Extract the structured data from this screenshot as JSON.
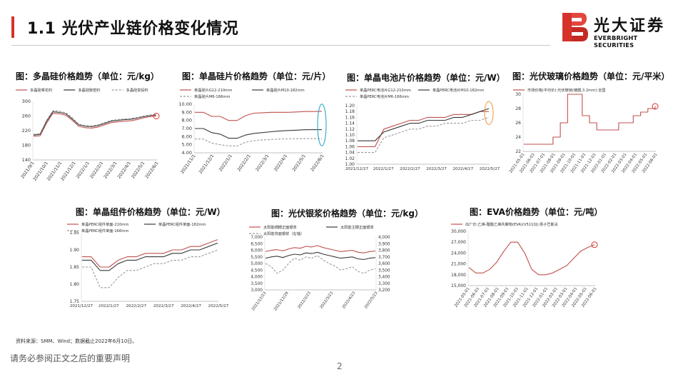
{
  "header": {
    "title": "1.1 光伏产业链价格变化情况",
    "logo_cn": "光大证券",
    "logo_en": "EVERBRIGHT SECURITIES",
    "accent_color": "#d6322b"
  },
  "footer": {
    "source": "资料来源：SMM、Wind；数据截止2022年6月10日。",
    "disclaimer": "请务必参阅正文之后的重要声明",
    "page": "2"
  },
  "chart_data": [
    {
      "id": "polysilicon",
      "type": "line",
      "title": "图：多晶硅价格趋势（单位：元/kg）",
      "legend": [
        "多晶硅菜花料",
        "多晶硅致密料",
        "多晶硅复投料"
      ],
      "ylim": [
        140,
        300
      ],
      "yticks": [
        "140",
        "180",
        "220",
        "260",
        "300"
      ],
      "xticks": [
        "2021/9/1",
        "2021/10/1",
        "2021/11/1",
        "2021/12/1",
        "2022/1/1",
        "2022/2/1",
        "2022/3/1",
        "2022/4/1",
        "2022/5/1",
        "2022/6/1"
      ],
      "highlight": "circle-end",
      "series": [
        {
          "name": "多晶硅菜花料",
          "color": "#c0504d",
          "dash": "",
          "values": [
            205,
            206,
            240,
            268,
            266,
            262,
            248,
            232,
            228,
            227,
            230,
            236,
            242,
            244,
            246,
            247,
            250,
            255,
            258,
            260
          ]
        },
        {
          "name": "多晶硅致密料",
          "color": "#3a3a3a",
          "dash": "",
          "values": [
            208,
            210,
            245,
            272,
            270,
            266,
            252,
            236,
            232,
            231,
            234,
            240,
            246,
            248,
            250,
            251,
            254,
            258,
            261,
            263
          ]
        },
        {
          "name": "多晶硅复投料",
          "color": "#9a9a9a",
          "dash": "3,2",
          "values": [
            210,
            212,
            248,
            275,
            273,
            269,
            255,
            238,
            234,
            233,
            236,
            242,
            248,
            250,
            252,
            253,
            256,
            260,
            263,
            265
          ]
        }
      ]
    },
    {
      "id": "wafer",
      "type": "line",
      "title": "图：单晶硅片价格趋势（单位：元/片）",
      "legend": [
        "单晶硅片G12-210mm",
        "单晶硅片M10-182mm",
        "单晶硅片M6-166mm"
      ],
      "ylim": [
        4.0,
        10.0
      ],
      "yticks": [
        "4.00",
        "5.00",
        "6.00",
        "7.00",
        "8.00",
        "9.00",
        "10.00"
      ],
      "xticks": [
        "2021/11/1",
        "2021/12/1",
        "2022/1/1",
        "2022/2/1",
        "2022/3/1",
        "2022/4/1",
        "2022/5/1",
        "2022/6/1"
      ],
      "highlight": "ellipse-end",
      "series": [
        {
          "name": "单晶硅片G12-210mm",
          "color": "#c0504d",
          "dash": "",
          "values": [
            9.0,
            9.0,
            8.5,
            8.5,
            8.0,
            8.0,
            8.6,
            8.9,
            8.95,
            9.0,
            9.0,
            9.0,
            9.05,
            9.1,
            9.1,
            9.13
          ]
        },
        {
          "name": "单晶硅片M10-182mm",
          "color": "#3a3a3a",
          "dash": "",
          "values": [
            7.0,
            7.0,
            6.5,
            6.3,
            5.8,
            5.8,
            6.2,
            6.4,
            6.5,
            6.6,
            6.7,
            6.75,
            6.8,
            6.85,
            6.86,
            6.86
          ]
        },
        {
          "name": "单晶硅片M6-166mm",
          "color": "#9a9a9a",
          "dash": "3,2",
          "values": [
            5.7,
            5.7,
            5.2,
            5.0,
            4.85,
            4.85,
            5.3,
            5.5,
            5.6,
            5.65,
            5.7,
            5.72,
            5.75,
            5.75,
            5.75,
            5.75
          ]
        }
      ]
    },
    {
      "id": "cell",
      "type": "line",
      "title": "图：单晶电池片价格趋势（单位：元/W）",
      "legend": [
        "单晶PERC电池片G12-210mm",
        "单晶PERC电池片M10-182mm",
        "单晶PERC电池片M6-166mm"
      ],
      "ylim": [
        1.0,
        1.2
      ],
      "yticks": [
        "1.00",
        "1.02",
        "1.04",
        "1.06",
        "1.08",
        "1.10",
        "1.12",
        "1.14",
        "1.16",
        "1.18",
        "1.20"
      ],
      "xticks": [
        "2021/12/27",
        "2022/1/27",
        "2022/2/27",
        "2022/3/27",
        "2022/4/27",
        "2022/5/27"
      ],
      "highlight": "ellipse-end",
      "series": [
        {
          "name": "单晶PERC电池片G12-210mm",
          "color": "#c0504d",
          "dash": "",
          "values": [
            1.06,
            1.06,
            1.06,
            1.12,
            1.13,
            1.14,
            1.15,
            1.15,
            1.16,
            1.16,
            1.16,
            1.17,
            1.17,
            1.17,
            1.18,
            1.18
          ]
        },
        {
          "name": "单晶PERC电池片M10-182mm",
          "color": "#3a3a3a",
          "dash": "",
          "values": [
            1.08,
            1.08,
            1.08,
            1.11,
            1.12,
            1.13,
            1.14,
            1.14,
            1.15,
            1.15,
            1.15,
            1.16,
            1.16,
            1.17,
            1.18,
            1.19
          ]
        },
        {
          "name": "单晶PERC电池片M6-166mm",
          "color": "#9a9a9a",
          "dash": "3,2",
          "values": [
            1.04,
            1.04,
            1.04,
            1.09,
            1.1,
            1.11,
            1.12,
            1.12,
            1.13,
            1.13,
            1.14,
            1.14,
            1.14,
            1.15,
            1.15,
            1.16
          ]
        }
      ]
    },
    {
      "id": "glass",
      "type": "line",
      "title": "图：光伏玻璃价格趋势（单位：元/平米）",
      "legend": [
        "市场价格(平均价):光伏玻璃(镀膜,3.2mm):全国"
      ],
      "ylim": [
        22,
        30
      ],
      "yticks": [
        "22",
        "24",
        "26",
        "28",
        "30"
      ],
      "xticks": [
        "2021-05-01",
        "2021-06-01",
        "2021-07-01",
        "2021-08-01",
        "2021-09-01",
        "2021-10-01",
        "2021-11-01",
        "2021-12-01",
        "2022-01-01",
        "2022-02-01",
        "2022-03-01",
        "2022-04-01",
        "2022-05-01",
        "2022-06-01"
      ],
      "highlight": "circle-end",
      "series": [
        {
          "name": "市场价格(平均价):光伏玻璃(镀膜,3.2mm):全国",
          "color": "#c0504d",
          "dash": "",
          "step": true,
          "values": [
            23,
            23,
            23,
            23,
            24,
            26,
            30,
            30,
            27,
            26,
            25,
            25,
            25,
            26,
            26,
            27,
            27.5,
            28,
            28.3
          ]
        }
      ]
    },
    {
      "id": "module",
      "type": "line",
      "title": "图：单晶组件价格趋势（单位：元/W）",
      "legend": [
        "单晶PERC组件单面-210mm",
        "单晶PERC组件单面-182mm",
        "单晶PERC组件单面-166mm"
      ],
      "ylim": [
        1.75,
        1.95
      ],
      "yticks": [
        "1.75",
        "1.80",
        "1.85",
        "1.90",
        "1.95"
      ],
      "xticks": [
        "2021/12/27",
        "2022/1/27",
        "2022/2/27",
        "2022/3/27",
        "2022/4/27",
        "2022/5/27"
      ],
      "highlight": "none",
      "series": [
        {
          "name": "单晶PERC组件单面-210mm",
          "color": "#c0504d",
          "dash": "",
          "values": [
            1.88,
            1.88,
            1.85,
            1.85,
            1.87,
            1.88,
            1.88,
            1.89,
            1.89,
            1.89,
            1.9,
            1.9,
            1.91,
            1.91,
            1.92,
            1.93
          ]
        },
        {
          "name": "单晶PERC组件单面-182mm",
          "color": "#3a3a3a",
          "dash": "",
          "values": [
            1.87,
            1.87,
            1.84,
            1.84,
            1.86,
            1.87,
            1.87,
            1.88,
            1.88,
            1.88,
            1.89,
            1.89,
            1.9,
            1.9,
            1.91,
            1.92
          ]
        },
        {
          "name": "单晶PERC组件单面-166mm",
          "color": "#9a9a9a",
          "dash": "3,2",
          "values": [
            1.85,
            1.85,
            1.79,
            1.79,
            1.82,
            1.84,
            1.84,
            1.85,
            1.86,
            1.86,
            1.87,
            1.87,
            1.88,
            1.88,
            1.89,
            1.9
          ]
        }
      ]
    },
    {
      "id": "silverpaste",
      "type": "line",
      "title": "图：光伏银浆价格趋势（单位：元/kg）",
      "legend": [
        "太阳能细栅正面银浆",
        "太阳能主栅正面银浆",
        "太阳能背面银浆（右轴）"
      ],
      "ylim": [
        3000,
        7000
      ],
      "yticks": [
        "3,000",
        "3,500",
        "4,000",
        "4,500",
        "5,000",
        "5,500",
        "6,000",
        "6,500",
        "7,000"
      ],
      "ylim_right": [
        3200,
        4000
      ],
      "yticks_right": [
        "3,200",
        "3,300",
        "3,400",
        "3,500",
        "3,600",
        "3,700",
        "3,800",
        "3,900",
        "4,000"
      ],
      "xticks": [
        "2021/12/23",
        "2021/12/29",
        "2022/2/23",
        "2022/3/23",
        "2022/4/23",
        "2022/5/23"
      ],
      "highlight": "none",
      "series": [
        {
          "name": "太阳能细栅正面银浆",
          "color": "#c0504d",
          "dash": "",
          "axis": "left",
          "values": [
            5900,
            6000,
            6050,
            5950,
            6100,
            6200,
            6150,
            6300,
            6250,
            6350,
            6200,
            6100,
            6000,
            5900,
            5950,
            6000,
            5850,
            5800,
            5900,
            5950
          ]
        },
        {
          "name": "太阳能主栅正面银浆",
          "color": "#3a3a3a",
          "dash": "",
          "axis": "left",
          "values": [
            5400,
            5500,
            5550,
            5450,
            5600,
            5700,
            5650,
            5800,
            5750,
            5850,
            5700,
            5600,
            5500,
            5400,
            5450,
            5500,
            5350,
            5300,
            5400,
            5450
          ]
        },
        {
          "name": "太阳能背面银浆（右轴）",
          "color": "#9a9a9a",
          "dash": "3,2",
          "axis": "right",
          "values": [
            3600,
            3550,
            3450,
            3500,
            3600,
            3680,
            3650,
            3700,
            3680,
            3720,
            3650,
            3600,
            3560,
            3500,
            3520,
            3550,
            3480,
            3450,
            3500,
            3520
          ]
        }
      ]
    },
    {
      "id": "eva",
      "type": "line",
      "title": "图：EVA价格趋势（单位：元/吨）",
      "legend": [
        "出厂价:乙烯-醋酸乙烯共聚物(EVA)(V5110J):扬子巴斯夫"
      ],
      "ylim": [
        15000,
        30000
      ],
      "yticks": [
        "15,000",
        "18,000",
        "21,000",
        "24,000",
        "27,000",
        "30,000"
      ],
      "xticks": [
        "2021-05-01",
        "2021-06-01",
        "2021-07-01",
        "2021-08-01",
        "2021-09-01",
        "2021-10-01",
        "2021-11-01",
        "2021-12-01",
        "2022-01-01",
        "2022-02-01",
        "2022-03-01",
        "2022-04-01",
        "2022-05-01",
        "2022-06-01"
      ],
      "highlight": "circle-end",
      "series": [
        {
          "name": "出厂价:乙烯-醋酸乙烯共聚物(EVA)(V5110J):扬子巴斯夫",
          "color": "#c0504d",
          "dash": "",
          "values": [
            20000,
            18500,
            18500,
            19500,
            21500,
            24500,
            27000,
            27000,
            24000,
            19500,
            18000,
            18000,
            18500,
            19500,
            20500,
            22500,
            24500,
            25500,
            26300
          ]
        }
      ]
    }
  ]
}
